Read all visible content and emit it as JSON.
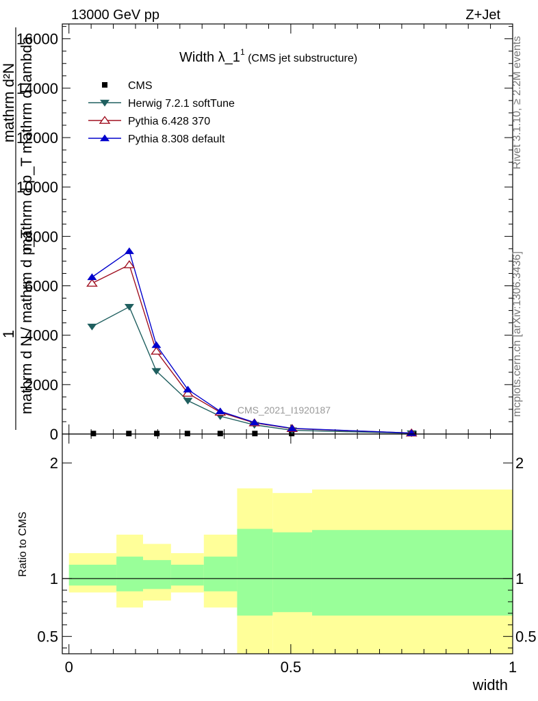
{
  "header": {
    "left": "13000 GeV pp",
    "right": "Z+Jet"
  },
  "plot_title": {
    "main": "Width λ_1",
    "sup": "1",
    "sub": " (CMS jet substructure)"
  },
  "side_notes": {
    "rivet": "Rivet 3.1.10, ≥ 2.2M events",
    "mcplots": "mcplots.cern.ch [arXiv:1306.3436]"
  },
  "watermark": "CMS_2021_I1920187",
  "y_title_top": {
    "numer": "mathrm d²N",
    "denom": "mathrm d p_T mathrm d lambda",
    "prefix_numer": "1",
    "prefix_denom": "mathrm d N / mathrm d p_T"
  },
  "x_title": "width",
  "ratio_ylabel": "Ratio to CMS",
  "colors": {
    "cms": "#000000",
    "herwig": "#1f5f5f",
    "pythia6": "#a01020",
    "pythia8": "#0000cc",
    "band_outer": "#ffff99",
    "band_inner": "#99ff99"
  },
  "chart_data": [
    {
      "type": "line",
      "title": "Width λ_1¹ (CMS jet substructure)",
      "xlabel": "width",
      "ylabel": "1 / (mathrm d N / mathrm d p_T) · mathrm d²N / (mathrm d p_T mathrm d lambda)",
      "xlim": [
        -0.015,
        1.0
      ],
      "ylim": [
        0,
        16600
      ],
      "x_ticks": [
        0,
        0.5,
        1
      ],
      "x_tick_labels": [
        "0",
        "0.5",
        "1"
      ],
      "y_ticks": [
        0,
        2000,
        4000,
        6000,
        8000,
        10000,
        12000,
        14000,
        16000
      ],
      "y_tick_labels": [
        "0",
        "2000",
        "4000",
        "6000",
        "8000",
        "10000",
        "12000",
        "14000",
        "16000"
      ],
      "legend_position": "top-left",
      "series": [
        {
          "name": "CMS",
          "marker": "square",
          "x": [
            0.055,
            0.135,
            0.198,
            0.267,
            0.341,
            0.419,
            0.502,
            0.777
          ],
          "y": [
            20,
            20,
            20,
            20,
            20,
            20,
            20,
            20
          ]
        },
        {
          "name": "Herwig 7.2.1 softTune",
          "marker": "triangle-down",
          "x": [
            0.052,
            0.136,
            0.197,
            0.268,
            0.341,
            0.418,
            0.503,
            0.772
          ],
          "y": [
            4350,
            5150,
            2550,
            1350,
            720,
            370,
            150,
            30
          ]
        },
        {
          "name": "Pythia 6.428 370",
          "marker": "triangle-up-open",
          "x": [
            0.052,
            0.136,
            0.197,
            0.268,
            0.341,
            0.418,
            0.503,
            0.772
          ],
          "y": [
            6100,
            6850,
            3350,
            1650,
            880,
            450,
            220,
            40
          ]
        },
        {
          "name": "Pythia 8.308 default",
          "marker": "triangle-up",
          "x": [
            0.052,
            0.136,
            0.197,
            0.268,
            0.341,
            0.418,
            0.503,
            0.772
          ],
          "y": [
            6350,
            7400,
            3600,
            1800,
            920,
            470,
            230,
            40
          ]
        }
      ]
    },
    {
      "type": "area",
      "title": "",
      "ylabel": "Ratio to CMS",
      "xlabel": "width",
      "xlim": [
        -0.015,
        1.0
      ],
      "ylim": [
        0.35,
        2.25
      ],
      "y_ticks": [
        0.5,
        1,
        2
      ],
      "y_tick_labels": [
        "0.5",
        "1",
        "2"
      ],
      "bins": [
        {
          "x0": 0.0,
          "x1": 0.107,
          "outer": [
            0.88,
            1.22
          ],
          "inner": [
            0.94,
            1.12
          ]
        },
        {
          "x0": 0.107,
          "x1": 0.167,
          "outer": [
            0.75,
            1.38
          ],
          "inner": [
            0.89,
            1.19
          ]
        },
        {
          "x0": 0.167,
          "x1": 0.23,
          "outer": [
            0.81,
            1.3
          ],
          "inner": [
            0.91,
            1.16
          ]
        },
        {
          "x0": 0.23,
          "x1": 0.304,
          "outer": [
            0.88,
            1.22
          ],
          "inner": [
            0.94,
            1.12
          ]
        },
        {
          "x0": 0.304,
          "x1": 0.379,
          "outer": [
            0.75,
            1.38
          ],
          "inner": [
            0.89,
            1.19
          ]
        },
        {
          "x0": 0.379,
          "x1": 0.459,
          "outer": [
            0.35,
            1.78
          ],
          "inner": [
            0.68,
            1.43
          ]
        },
        {
          "x0": 0.459,
          "x1": 0.548,
          "outer": [
            0.35,
            1.74
          ],
          "inner": [
            0.71,
            1.4
          ]
        },
        {
          "x0": 0.548,
          "x1": 1.0,
          "outer": [
            0.35,
            1.77
          ],
          "inner": [
            0.68,
            1.42
          ]
        }
      ]
    }
  ]
}
